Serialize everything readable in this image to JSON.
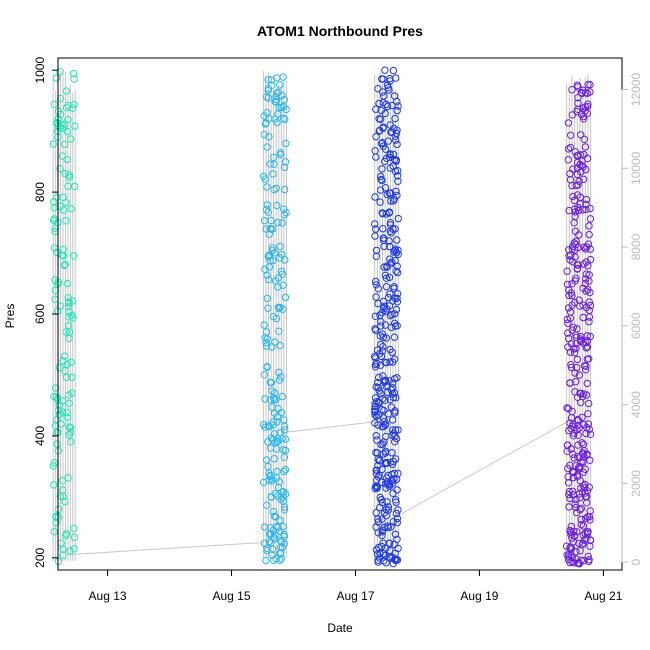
{
  "chart_data": {
    "type": "scatter",
    "title": "ATOM1 Northbound Pres",
    "xlabel": "Date",
    "ylabel": "Pres",
    "x_ticks": [
      "Aug 13",
      "Aug 15",
      "Aug 17",
      "Aug 19",
      "Aug 21"
    ],
    "x_tick_values": [
      13,
      15,
      17,
      19,
      21
    ],
    "xlim": [
      12.2,
      21.3
    ],
    "y_ticks": [
      "200",
      "400",
      "600",
      "800",
      "1000"
    ],
    "y_tick_values": [
      200,
      400,
      600,
      800,
      1000
    ],
    "ylim": [
      180,
      1020
    ],
    "y2_ticks": [
      "0",
      "2000",
      "4000",
      "6000",
      "8000",
      "10000",
      "12000"
    ],
    "y2_tick_values": [
      0,
      2000,
      4000,
      6000,
      8000,
      10000,
      12000
    ],
    "y2lim": [
      -200,
      12800
    ],
    "y2_color": "#bdbdbd",
    "grid": false,
    "legend": "none",
    "marker": "open-circle",
    "connector_color": "#c8c8c8",
    "profiles": [
      {
        "date_day": 12.3,
        "pres_min": 190,
        "pres_max": 1000,
        "n": 140,
        "color": "#1de9b6",
        "fill": 0.2
      },
      {
        "date_day": 15.7,
        "pres_min": 195,
        "pres_max": 1000,
        "n": 220,
        "color": "#29b6f6",
        "fill": 0.25
      },
      {
        "date_day": 17.5,
        "pres_min": 190,
        "pres_max": 1000,
        "n": 360,
        "color": "#1e3ae8",
        "fill": 0.28
      },
      {
        "date_day": 20.6,
        "pres_min": 190,
        "pres_max": 995,
        "n": 330,
        "color": "#6a1fe0",
        "fill": 0.3
      }
    ],
    "transit_lines": [
      {
        "from": [
          12.35,
          205
        ],
        "to": [
          15.5,
          225
        ]
      },
      {
        "from": [
          15.8,
          405
        ],
        "to": [
          17.45,
          425
        ]
      },
      {
        "from": [
          17.7,
          270
        ],
        "to": [
          20.45,
          425
        ]
      }
    ]
  }
}
